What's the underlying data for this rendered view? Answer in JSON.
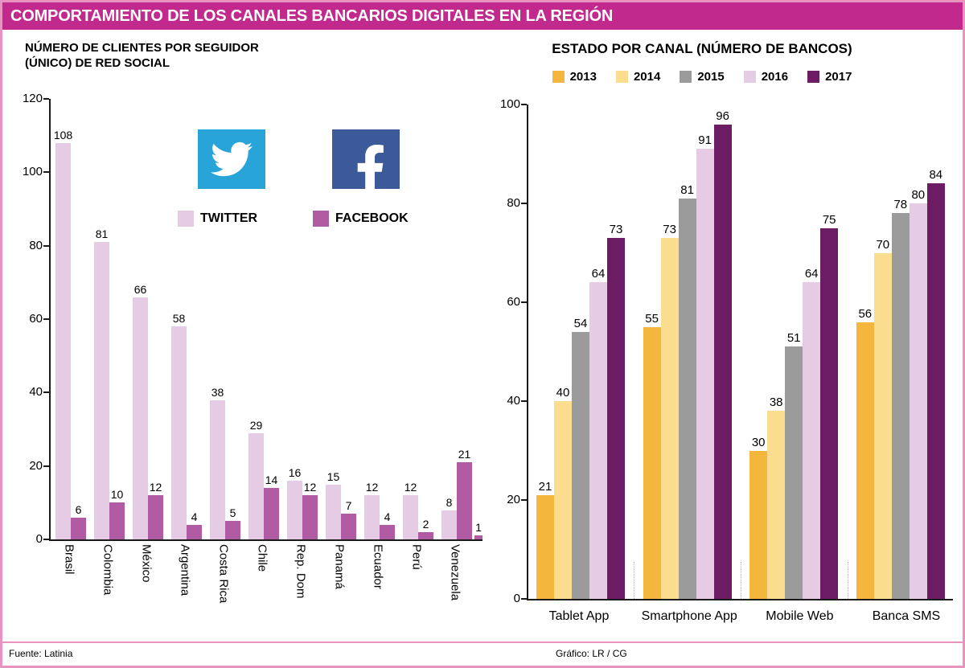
{
  "header": {
    "title": "COMPORTAMIENTO DE LOS CANALES BANCARIOS DIGITALES EN LA REGIÓN"
  },
  "footer": {
    "source": "Fuente: Latinia",
    "credit": "Gráfico: LR / CG"
  },
  "colors": {
    "header_bg": "#C2298D",
    "border_pink": "#E893C0",
    "twitter_blue": "#29A4D9",
    "facebook_blue": "#3C5A99",
    "axis": "#1a1a1a"
  },
  "chart_data": [
    {
      "id": "social",
      "type": "bar",
      "title": "NÚMERO DE CLIENTES POR SEGUIDOR (ÚNICO) DE RED SOCIAL",
      "title_lines": [
        "NÚMERO DE CLIENTES POR SEGUIDOR",
        "(ÚNICO) DE RED SOCIAL"
      ],
      "categories": [
        "Brasil",
        "Colombia",
        "México",
        "Argentina",
        "Costa Rica",
        "Chile",
        "Rep. Dom",
        "Panamá",
        "Ecuador",
        "Perú",
        "Venezuela"
      ],
      "series": [
        {
          "name": "TWITTER",
          "color": "#E6CBE4",
          "values": [
            108,
            81,
            66,
            58,
            38,
            29,
            16,
            15,
            12,
            12,
            8
          ]
        },
        {
          "name": "FACEBOOK",
          "color": "#B15CA2",
          "values": [
            6,
            10,
            12,
            4,
            5,
            14,
            12,
            7,
            4,
            2,
            21
          ]
        }
      ],
      "extra_bar": {
        "value": 1,
        "series": "FACEBOOK"
      },
      "ylim": [
        0,
        120
      ],
      "y_ticks": [
        0,
        20,
        40,
        60,
        80,
        100,
        120
      ],
      "grid": false,
      "legend_position": "top-center"
    },
    {
      "id": "channels",
      "type": "bar",
      "title": "ESTADO POR CANAL (NÚMERO DE BANCOS)",
      "categories": [
        "Tablet App",
        "Smartphone App",
        "Mobile Web",
        "Banca SMS"
      ],
      "series": [
        {
          "name": "2013",
          "color": "#F5B63E",
          "values": [
            21,
            55,
            30,
            56
          ]
        },
        {
          "name": "2014",
          "color": "#FBDD90",
          "values": [
            40,
            73,
            38,
            70
          ]
        },
        {
          "name": "2015",
          "color": "#9B9B9B",
          "values": [
            54,
            81,
            51,
            78
          ]
        },
        {
          "name": "2016",
          "color": "#E6CBE4",
          "values": [
            64,
            91,
            64,
            80
          ]
        },
        {
          "name": "2017",
          "color": "#6B1C62",
          "values": [
            73,
            96,
            75,
            84
          ]
        }
      ],
      "ylim": [
        0,
        100
      ],
      "y_ticks": [
        0,
        20,
        40,
        60,
        80,
        100
      ],
      "grid": false,
      "legend_position": "top"
    }
  ]
}
